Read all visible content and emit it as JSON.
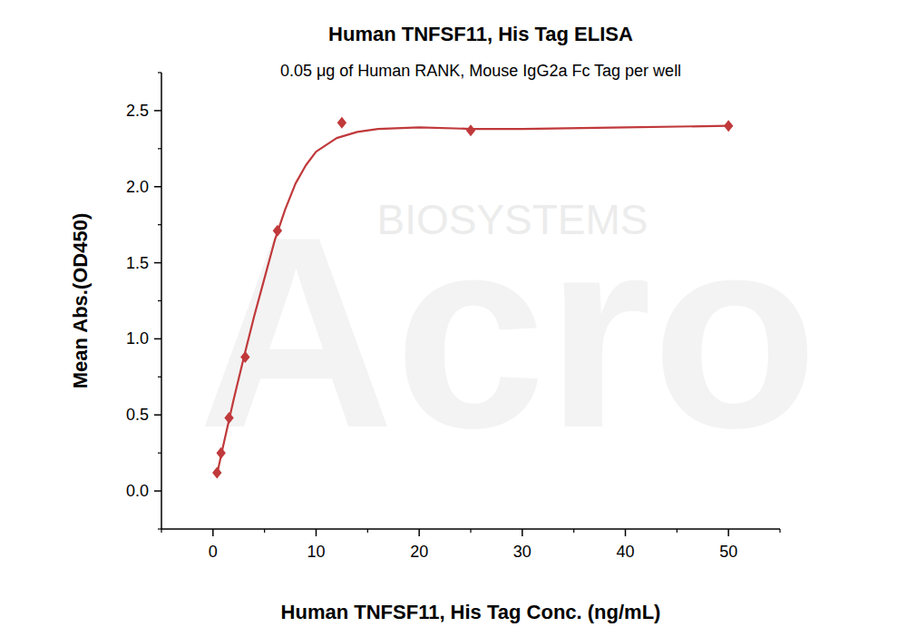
{
  "chart_data": {
    "type": "scatter",
    "title": "Human TNFSF11, His Tag ELISA",
    "subtitle": "0.05 μg of Human RANK, Mouse IgG2a Fc Tag per well",
    "x_label": "Human TNFSF11, His Tag Conc. (ng/mL)",
    "y_label": "Mean Abs.(OD450)",
    "annotations": [
      "Acro",
      "BIOSYSTEMS"
    ],
    "color": "#c0393b",
    "xlim": [
      -5,
      55
    ],
    "ylim": [
      -0.25,
      2.75
    ],
    "xticks": [
      0,
      10,
      20,
      30,
      40,
      50
    ],
    "yticks": [
      {
        "value": 0,
        "label": "0.0"
      },
      0.5,
      {
        "value": 1,
        "label": "1.0"
      },
      1.5,
      {
        "value": 2,
        "label": "2.0"
      },
      2.5
    ],
    "grid": false,
    "series": [
      {
        "type": "scatter",
        "marker": "diamond",
        "x": [
          0.39,
          0.78,
          1.56,
          3.125,
          6.25,
          12.5,
          25,
          50
        ],
        "values": [
          0.12,
          0.25,
          0.48,
          0.88,
          1.71,
          2.42,
          2.37,
          2.4
        ]
      },
      {
        "type": "line",
        "line_style": "solid",
        "x": [
          0.39,
          1,
          2,
          3,
          4,
          5,
          6,
          7,
          8,
          9,
          10,
          12,
          14,
          16,
          20,
          25,
          30,
          40,
          50
        ],
        "values": [
          0.11,
          0.3,
          0.6,
          0.88,
          1.15,
          1.4,
          1.65,
          1.85,
          2.02,
          2.14,
          2.23,
          2.32,
          2.36,
          2.38,
          2.39,
          2.38,
          2.38,
          2.39,
          2.4
        ]
      }
    ]
  }
}
